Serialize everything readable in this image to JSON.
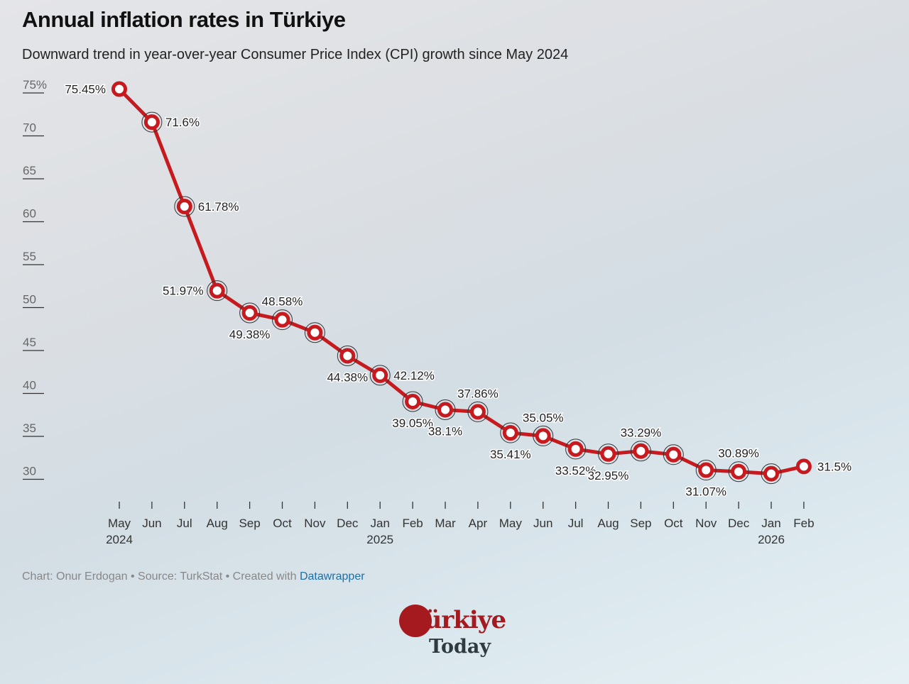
{
  "header": {
    "title": "Annual inflation rates in Türkiye",
    "subtitle": "Downward trend in year-over-year Consumer Price Index (CPI) growth since May 2024"
  },
  "footer": {
    "credit": "Chart: Onur Erdogan • Source: TurkStat • Created with ",
    "link": "Datawrapper"
  },
  "logo": {
    "line1": "Türkiye",
    "line2": "Today"
  },
  "colors": {
    "line": "#c61a1f",
    "text": "#222222",
    "axis": "#555555"
  },
  "chart_data": {
    "type": "line",
    "title": "Annual inflation rates in Türkiye",
    "ylim": [
      30,
      75
    ],
    "yticks": [
      "75%",
      "70",
      "65",
      "60",
      "55",
      "50",
      "45",
      "40",
      "35",
      "30"
    ],
    "ytick_values": [
      75,
      70,
      65,
      60,
      55,
      50,
      45,
      40,
      35,
      30
    ],
    "grid": false,
    "x": [
      "May 2024",
      "Jun 2024",
      "Jul 2024",
      "Aug 2024",
      "Sep 2024",
      "Oct 2024",
      "Nov 2024",
      "Dec 2024",
      "Jan 2025",
      "Feb 2025",
      "Mar 2025",
      "Apr 2025",
      "May 2025",
      "Jun 2025",
      "Jul 2025",
      "Aug 2025",
      "Sep 2025",
      "Oct 2025",
      "Nov 2025",
      "Dec 2025",
      "Jan 2026",
      "Feb 2026"
    ],
    "xtick_months": [
      "May",
      "Jun",
      "Jul",
      "Aug",
      "Sep",
      "Oct",
      "Nov",
      "Dec",
      "Jan",
      "Feb",
      "Mar",
      "Apr",
      "May",
      "Jun",
      "Jul",
      "Aug",
      "Sep",
      "Oct",
      "Nov",
      "Dec",
      "Jan",
      "Feb"
    ],
    "xtick_years": [
      "2024",
      "",
      "",
      "",
      "",
      "",
      "",
      "",
      "2025",
      "",
      "",
      "",
      "",
      "",
      "",
      "",
      "",
      "",
      "",
      "",
      "2026",
      ""
    ],
    "values": [
      75.45,
      71.6,
      61.78,
      51.97,
      49.38,
      48.58,
      47.09,
      44.38,
      42.12,
      39.05,
      38.1,
      37.86,
      35.41,
      35.05,
      33.52,
      32.95,
      33.29,
      32.87,
      31.07,
      30.89,
      30.65,
      31.5
    ],
    "data_labels": [
      "75.45%",
      "71.6%",
      "61.78%",
      "51.97%",
      "49.38%",
      "48.58%",
      "",
      "44.38%",
      "42.12%",
      "39.05%",
      "38.1%",
      "37.86%",
      "35.41%",
      "35.05%",
      "33.52%",
      "32.95%",
      "33.29%",
      "",
      "31.07%",
      "30.89%",
      "",
      "31.5%"
    ]
  }
}
